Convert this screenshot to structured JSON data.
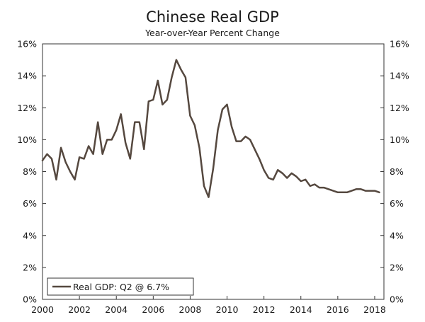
{
  "chart_data": {
    "type": "line",
    "title": "Chinese Real GDP",
    "subtitle": "Year-over-Year Percent Change",
    "xlabel": "",
    "ylabel": "",
    "xlim": [
      2000,
      2018.5
    ],
    "ylim": [
      0,
      16
    ],
    "y_ticks": [
      0,
      2,
      4,
      6,
      8,
      10,
      12,
      14,
      16
    ],
    "y_tick_labels": [
      "0%",
      "2%",
      "4%",
      "6%",
      "8%",
      "10%",
      "12%",
      "14%",
      "16%"
    ],
    "x_ticks": [
      2000,
      2002,
      2004,
      2006,
      2008,
      2010,
      2012,
      2014,
      2016,
      2018
    ],
    "x_tick_labels": [
      "2000",
      "2002",
      "2004",
      "2006",
      "2008",
      "2010",
      "2012",
      "2014",
      "2016",
      "2018"
    ],
    "grid": false,
    "legend_position": "bottom-left",
    "line_color": "#55483f",
    "series": [
      {
        "name": "Real GDP: Q2 @ 6.7%",
        "x": [
          2000.0,
          2000.25,
          2000.5,
          2000.75,
          2001.0,
          2001.25,
          2001.5,
          2001.75,
          2002.0,
          2002.25,
          2002.5,
          2002.75,
          2003.0,
          2003.25,
          2003.5,
          2003.75,
          2004.0,
          2004.25,
          2004.5,
          2004.75,
          2005.0,
          2005.25,
          2005.5,
          2005.75,
          2006.0,
          2006.25,
          2006.5,
          2006.75,
          2007.0,
          2007.25,
          2007.5,
          2007.75,
          2008.0,
          2008.25,
          2008.5,
          2008.75,
          2009.0,
          2009.25,
          2009.5,
          2009.75,
          2010.0,
          2010.25,
          2010.5,
          2010.75,
          2011.0,
          2011.25,
          2011.5,
          2011.75,
          2012.0,
          2012.25,
          2012.5,
          2012.75,
          2013.0,
          2013.25,
          2013.5,
          2013.75,
          2014.0,
          2014.25,
          2014.5,
          2014.75,
          2015.0,
          2015.25,
          2015.5,
          2015.75,
          2016.0,
          2016.25,
          2016.5,
          2016.75,
          2017.0,
          2017.25,
          2017.5,
          2017.75,
          2018.0,
          2018.25
        ],
        "values": [
          8.7,
          9.1,
          8.8,
          7.5,
          9.5,
          8.6,
          8.0,
          7.5,
          8.9,
          8.8,
          9.6,
          9.1,
          11.1,
          9.1,
          10.0,
          10.0,
          10.6,
          11.6,
          9.8,
          8.8,
          11.1,
          11.1,
          9.4,
          12.4,
          12.5,
          13.7,
          12.2,
          12.5,
          13.9,
          15.0,
          14.4,
          13.9,
          11.5,
          10.9,
          9.5,
          7.1,
          6.4,
          8.2,
          10.6,
          11.9,
          12.2,
          10.8,
          9.9,
          9.9,
          10.2,
          10.0,
          9.4,
          8.8,
          8.1,
          7.6,
          7.5,
          8.1,
          7.9,
          7.6,
          7.9,
          7.7,
          7.4,
          7.5,
          7.1,
          7.2,
          7.0,
          7.0,
          6.9,
          6.8,
          6.7,
          6.7,
          6.7,
          6.8,
          6.9,
          6.9,
          6.8,
          6.8,
          6.8,
          6.7
        ]
      }
    ]
  }
}
